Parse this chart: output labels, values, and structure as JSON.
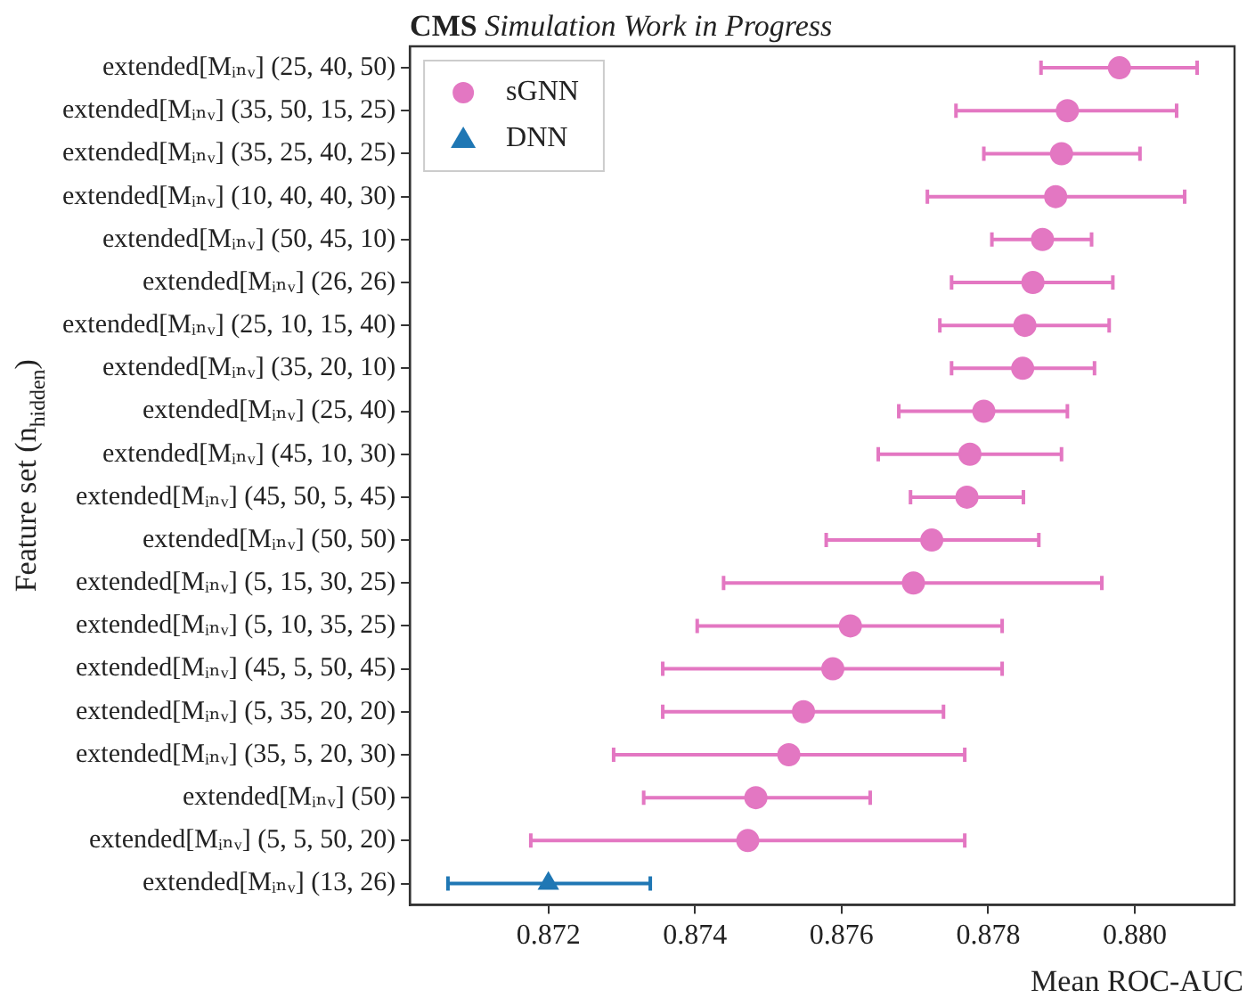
{
  "chart_data": {
    "type": "scatter",
    "orientation": "horizontal",
    "title": "CMS Simulation Work in Progress",
    "xlabel": "Mean ROC-AUC",
    "ylabel": "Feature set (n$_{hidden}$)",
    "categories": [
      "extended[Mᵢₙᵥ] (25, 40, 50)",
      "extended[Mᵢₙᵥ] (35, 50, 15, 25)",
      "extended[Mᵢₙᵥ] (35, 25, 40, 25)",
      "extended[Mᵢₙᵥ] (10, 40, 40, 30)",
      "extended[Mᵢₙᵥ] (50, 45, 10)",
      "extended[Mᵢₙᵥ] (26, 26)",
      "extended[Mᵢₙᵥ] (25, 10, 15, 40)",
      "extended[Mᵢₙᵥ] (35, 20, 10)",
      "extended[Mᵢₙᵥ] (25, 40)",
      "extended[Mᵢₙᵥ] (45, 10, 30)",
      "extended[Mᵢₙᵥ] (45, 50, 5, 45)",
      "extended[Mᵢₙᵥ] (50, 50)",
      "extended[Mᵢₙᵥ] (5, 15, 30, 25)",
      "extended[Mᵢₙᵥ] (5, 10, 35, 25)",
      "extended[Mᵢₙᵥ] (45, 5, 50, 45)",
      "extended[Mᵢₙᵥ] (5, 35, 20, 20)",
      "extended[Mᵢₙᵥ] (35, 5, 20, 30)",
      "extended[Mᵢₙᵥ] (50)",
      "extended[Mᵢₙᵥ] (5, 5, 50, 20)",
      "extended[Mᵢₙᵥ] (13, 26)"
    ],
    "xlim": [
      0.87011,
      0.88136
    ],
    "xticks": [
      0.872,
      0.874,
      0.876,
      0.878,
      {
        "value": 0.88,
        "label": "0.880"
      }
    ],
    "grid": false,
    "legend": "top left",
    "series": [
      {
        "name": "sGNN",
        "color": "#e377c2",
        "marker": "circle",
        "values": [
          0.87979,
          0.87908,
          0.879,
          0.87892,
          0.87874,
          0.87861,
          0.8785,
          0.87847,
          0.87794,
          0.87775,
          0.87771,
          0.87723,
          0.87698,
          0.87612,
          0.87588,
          0.87548,
          0.87528,
          0.87483,
          0.87472,
          null
        ],
        "errors": [
          [
            0.87872,
            0.88085
          ],
          [
            0.87756,
            0.88057
          ],
          [
            0.87794,
            0.88007
          ],
          [
            0.87717,
            0.88068
          ],
          [
            0.87805,
            0.87941
          ],
          [
            0.8775,
            0.8797
          ],
          [
            0.87734,
            0.87965
          ],
          [
            0.8775,
            0.87945
          ],
          [
            0.87678,
            0.87908
          ],
          [
            0.8765,
            0.879
          ],
          [
            0.87694,
            0.87848
          ],
          [
            0.87579,
            0.87869
          ],
          [
            0.87439,
            0.87955
          ],
          [
            0.87403,
            0.87819
          ],
          [
            0.87356,
            0.87819
          ],
          [
            0.87356,
            0.87739
          ],
          [
            0.87289,
            0.87768
          ],
          [
            0.8733,
            0.87639
          ],
          [
            0.87176,
            0.87768
          ],
          null
        ]
      },
      {
        "name": "DNN",
        "color": "#1f77b4",
        "marker": "triangle",
        "values": [
          null,
          null,
          null,
          null,
          null,
          null,
          null,
          null,
          null,
          null,
          null,
          null,
          null,
          null,
          null,
          null,
          null,
          null,
          null,
          0.872
        ],
        "errors": [
          null,
          null,
          null,
          null,
          null,
          null,
          null,
          null,
          null,
          null,
          null,
          null,
          null,
          null,
          null,
          null,
          null,
          null,
          null,
          [
            0.87063,
            0.87339
          ]
        ]
      }
    ]
  }
}
